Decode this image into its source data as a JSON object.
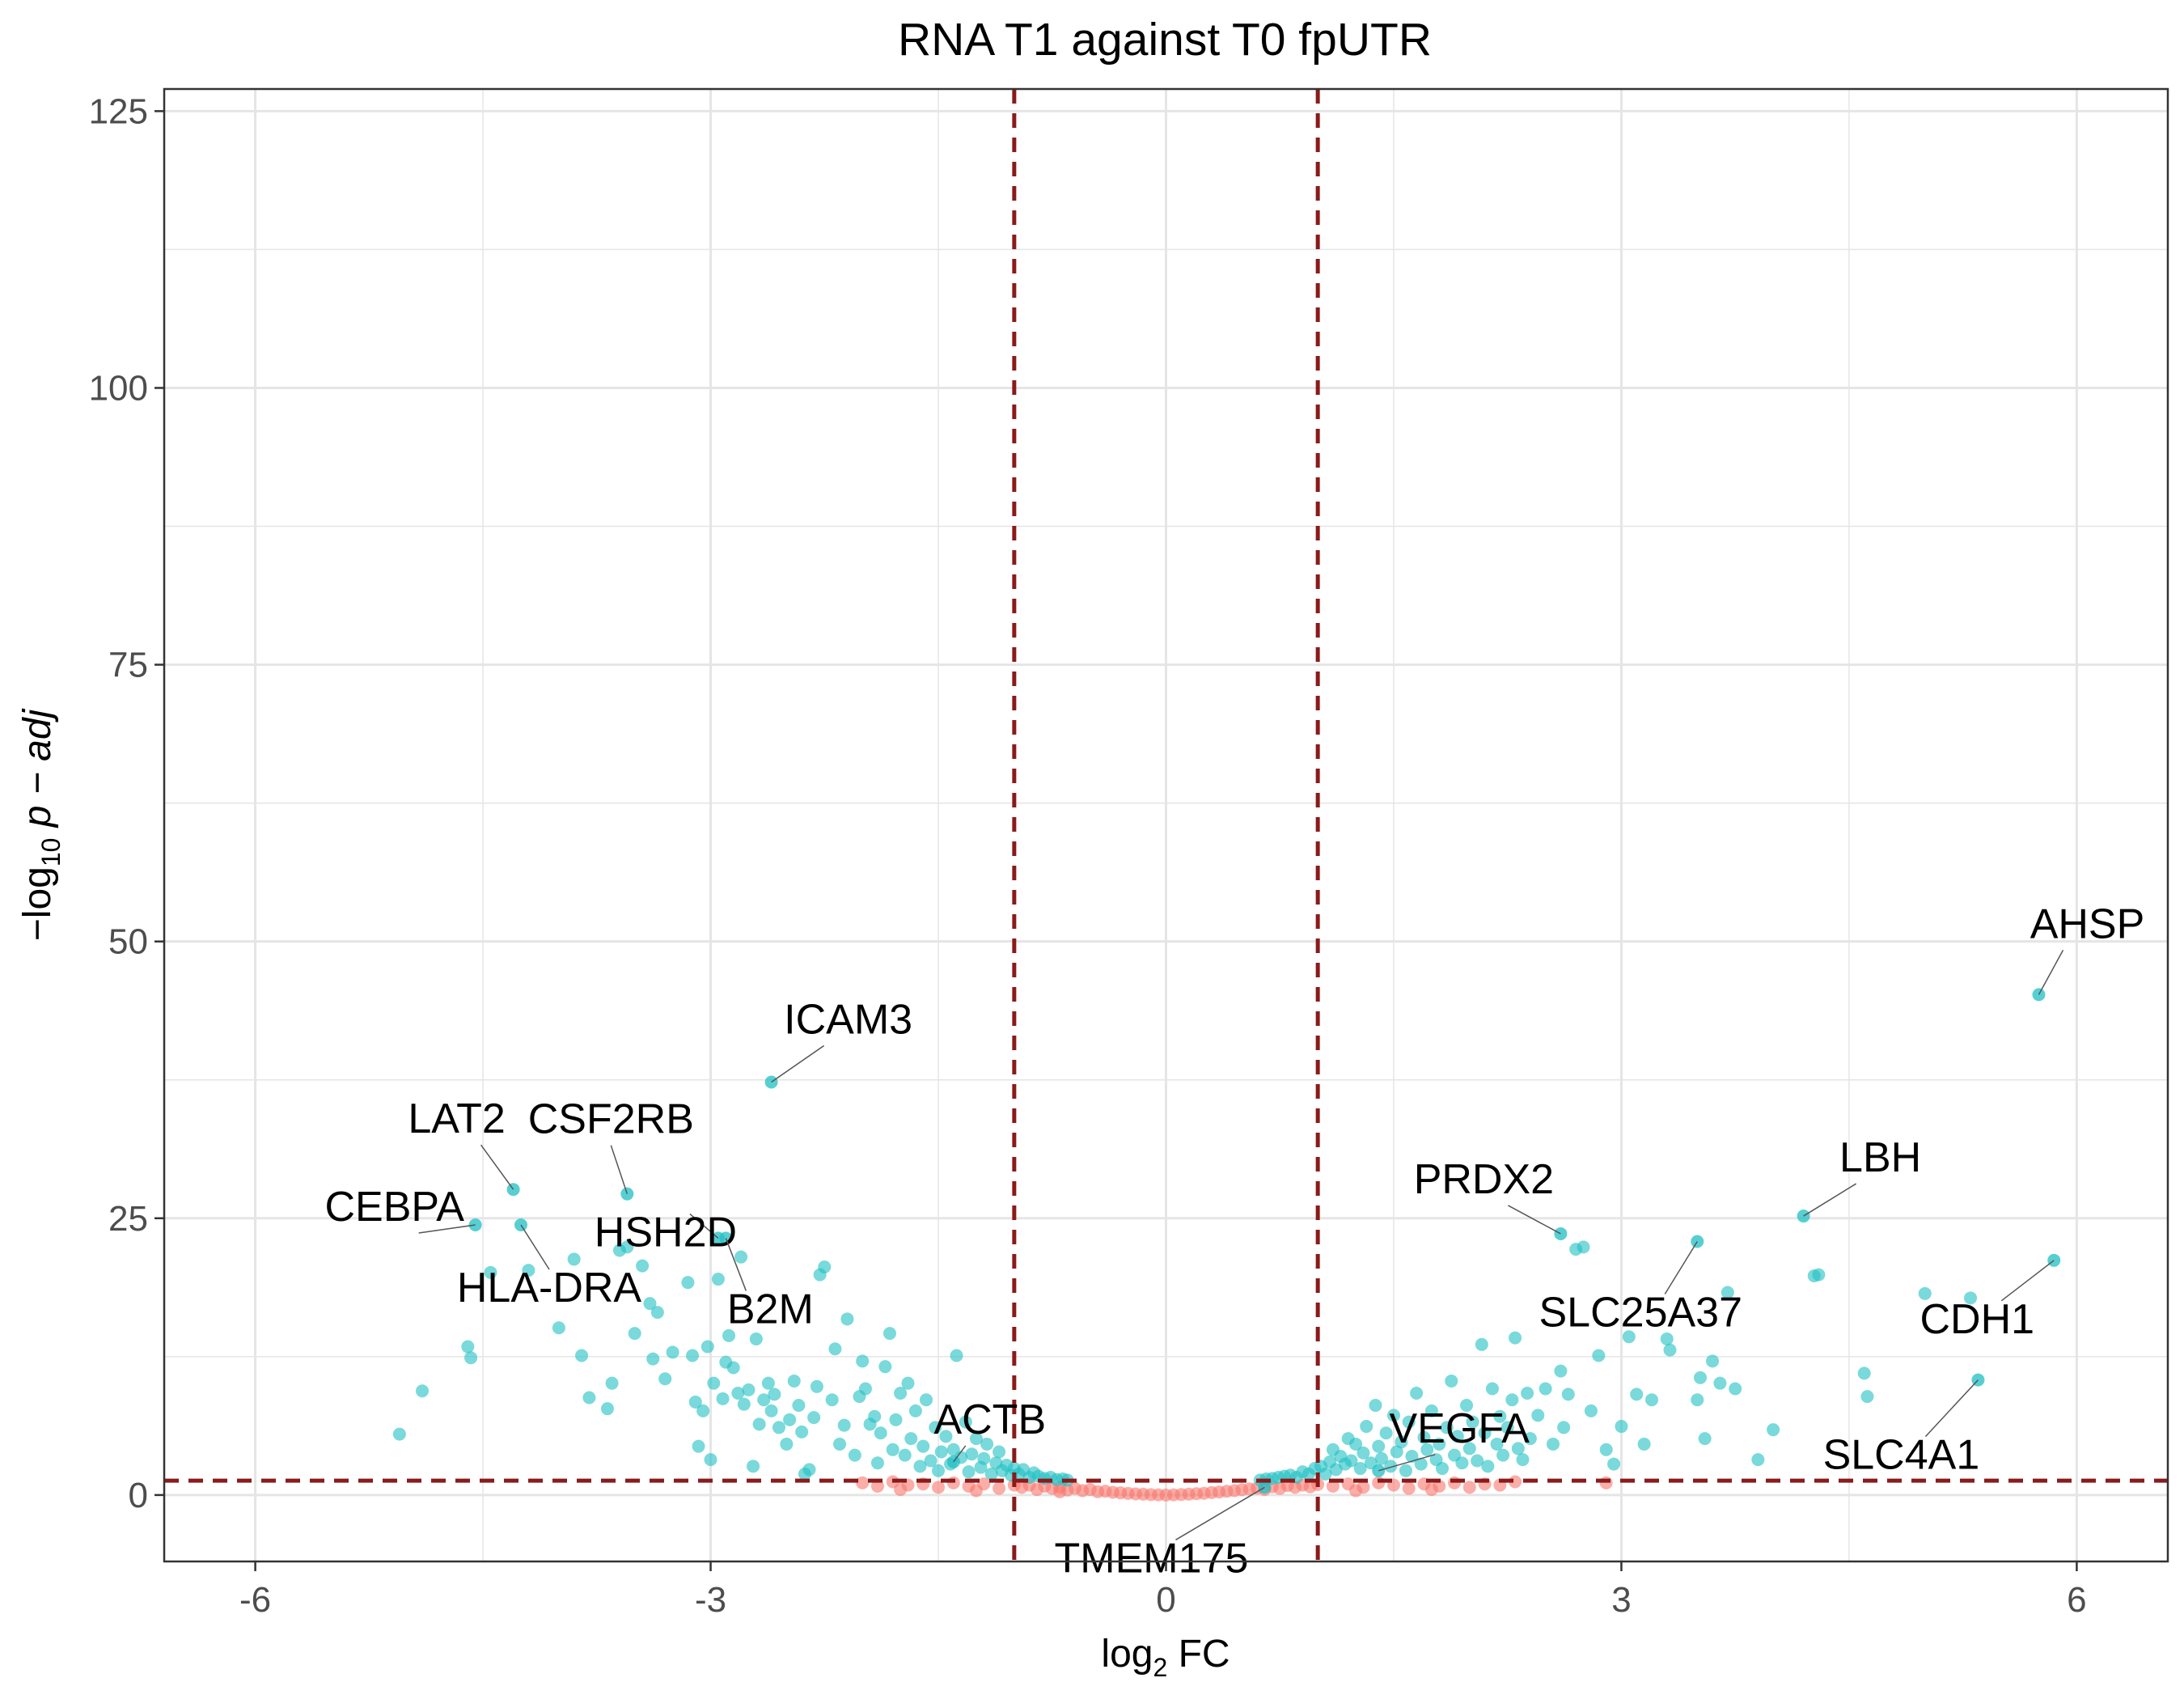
{
  "chart_data": {
    "type": "scatter",
    "title": "RNA T1 against T0 fpUTR",
    "xlabel": {
      "prefix": "log",
      "sub": "2",
      "suffix": " FC"
    },
    "ylabel": {
      "prefix": "−log",
      "sub": "10",
      "suffix": " p − adj"
    },
    "xlim": [
      -6.6,
      6.6
    ],
    "ylim": [
      -6,
      127
    ],
    "xticks": [
      -6,
      -3,
      0,
      3,
      6
    ],
    "xtick_labels": [
      "-6",
      "-3",
      "0",
      "3",
      "6"
    ],
    "yticks": [
      0,
      25,
      50,
      75,
      100,
      125
    ],
    "ytick_labels": [
      "0",
      "25",
      "50",
      "75",
      "100",
      "125"
    ],
    "grid": true,
    "thresholds": {
      "x": [
        -1,
        1
      ],
      "y": 1.3
    },
    "colors": {
      "significant": "#1FBFC3",
      "not_significant": "#F8766D",
      "threshold_line": "#8B1A1A",
      "grid": "#e5e5e5"
    },
    "labeled_points": [
      {
        "gene": "AHSP",
        "x": 5.75,
        "y": 45.2
      },
      {
        "gene": "ICAM3",
        "x": -2.6,
        "y": 37.3
      },
      {
        "gene": "LAT2",
        "x": -4.3,
        "y": 27.6
      },
      {
        "gene": "CSF2RB",
        "x": -3.55,
        "y": 27.2
      },
      {
        "gene": "LBH",
        "x": 4.2,
        "y": 25.2
      },
      {
        "gene": "CEBPA",
        "x": -4.55,
        "y": 24.4
      },
      {
        "gene": "HLA-DRA",
        "x": -4.25,
        "y": 24.4
      },
      {
        "gene": "HSH2D",
        "x": -2.95,
        "y": 23.2
      },
      {
        "gene": "PRDX2",
        "x": 2.6,
        "y": 23.6
      },
      {
        "gene": "SLC25A37",
        "x": 3.5,
        "y": 22.9
      },
      {
        "gene": "CDH1",
        "x": 5.85,
        "y": 21.2
      },
      {
        "gene": "B2M",
        "x": -2.9,
        "y": 23.2
      },
      {
        "gene": "SLC4A1",
        "x": 5.35,
        "y": 10.4
      },
      {
        "gene": "ACTB",
        "x": -1.4,
        "y": 3.0
      },
      {
        "gene": "VEGFA",
        "x": 1.4,
        "y": 2.2
      },
      {
        "gene": "TMEM175",
        "x": 0.65,
        "y": 0.7
      }
    ],
    "significant_points": [
      [
        -5.05,
        5.5
      ],
      [
        -4.9,
        9.4
      ],
      [
        -4.6,
        13.4
      ],
      [
        -4.58,
        12.4
      ],
      [
        -4.45,
        20.1
      ],
      [
        -4.2,
        20.3
      ],
      [
        -4.0,
        15.1
      ],
      [
        -3.9,
        21.3
      ],
      [
        -3.85,
        12.6
      ],
      [
        -3.8,
        8.8
      ],
      [
        -3.68,
        7.8
      ],
      [
        -3.65,
        10.1
      ],
      [
        -3.6,
        22.1
      ],
      [
        -3.55,
        22.4
      ],
      [
        -3.5,
        14.6
      ],
      [
        -3.45,
        20.7
      ],
      [
        -3.4,
        17.3
      ],
      [
        -3.38,
        12.3
      ],
      [
        -3.35,
        16.5
      ],
      [
        -3.3,
        10.5
      ],
      [
        -3.25,
        12.9
      ],
      [
        -3.15,
        19.2
      ],
      [
        -3.12,
        12.6
      ],
      [
        -3.1,
        8.4
      ],
      [
        -3.08,
        4.4
      ],
      [
        -3.05,
        7.6
      ],
      [
        -3.02,
        13.4
      ],
      [
        -3.0,
        3.2
      ],
      [
        -2.98,
        10.1
      ],
      [
        -2.95,
        19.5
      ],
      [
        -2.92,
        8.7
      ],
      [
        -2.9,
        12.0
      ],
      [
        -2.88,
        14.4
      ],
      [
        -2.85,
        11.5
      ],
      [
        -2.82,
        9.2
      ],
      [
        -2.8,
        21.5
      ],
      [
        -2.78,
        8.2
      ],
      [
        -2.75,
        9.5
      ],
      [
        -2.72,
        2.6
      ],
      [
        -2.7,
        14.1
      ],
      [
        -2.68,
        6.4
      ],
      [
        -2.65,
        8.6
      ],
      [
        -2.62,
        10.1
      ],
      [
        -2.6,
        7.6
      ],
      [
        -2.58,
        9.1
      ],
      [
        -2.55,
        6.1
      ],
      [
        -2.5,
        4.6
      ],
      [
        -2.48,
        6.8
      ],
      [
        -2.45,
        10.3
      ],
      [
        -2.42,
        8.1
      ],
      [
        -2.4,
        5.7
      ],
      [
        -2.38,
        1.9
      ],
      [
        -2.35,
        2.3
      ],
      [
        -2.32,
        7.0
      ],
      [
        -2.3,
        9.8
      ],
      [
        -2.28,
        19.9
      ],
      [
        -2.25,
        20.6
      ],
      [
        -2.2,
        8.6
      ],
      [
        -2.18,
        13.2
      ],
      [
        -2.15,
        4.6
      ],
      [
        -2.12,
        6.3
      ],
      [
        -2.1,
        15.9
      ],
      [
        -2.05,
        3.6
      ],
      [
        -2.02,
        8.9
      ],
      [
        -2.0,
        12.1
      ],
      [
        -1.98,
        9.6
      ],
      [
        -1.95,
        6.4
      ],
      [
        -1.92,
        7.1
      ],
      [
        -1.9,
        2.9
      ],
      [
        -1.88,
        5.6
      ],
      [
        -1.85,
        11.6
      ],
      [
        -1.82,
        14.6
      ],
      [
        -1.8,
        4.1
      ],
      [
        -1.78,
        6.8
      ],
      [
        -1.75,
        9.2
      ],
      [
        -1.72,
        3.6
      ],
      [
        -1.7,
        10.1
      ],
      [
        -1.68,
        5.1
      ],
      [
        -1.65,
        7.6
      ],
      [
        -1.62,
        2.6
      ],
      [
        -1.6,
        4.4
      ],
      [
        -1.58,
        8.6
      ],
      [
        -1.55,
        3.1
      ],
      [
        -1.52,
        6.1
      ],
      [
        -1.5,
        2.2
      ],
      [
        -1.48,
        3.9
      ],
      [
        -1.45,
        5.3
      ],
      [
        -1.42,
        2.8
      ],
      [
        -1.4,
        4.1
      ],
      [
        -1.38,
        12.6
      ],
      [
        -1.35,
        3.4
      ],
      [
        -1.32,
        6.6
      ],
      [
        -1.3,
        2.1
      ],
      [
        -1.28,
        3.7
      ],
      [
        -1.25,
        5.1
      ],
      [
        -1.22,
        2.5
      ],
      [
        -1.2,
        3.3
      ],
      [
        -1.18,
        4.6
      ],
      [
        -1.15,
        1.9
      ],
      [
        -1.12,
        2.9
      ],
      [
        -1.1,
        3.9
      ],
      [
        -1.08,
        2.2
      ],
      [
        -1.05,
        2.7
      ],
      [
        -1.02,
        1.8
      ],
      [
        -1.0,
        2.4
      ],
      [
        -0.97,
        1.9
      ],
      [
        -0.94,
        2.3
      ],
      [
        -0.9,
        1.6
      ],
      [
        -0.87,
        2.0
      ],
      [
        -0.84,
        1.7
      ],
      [
        -0.8,
        1.5
      ],
      [
        -0.76,
        1.6
      ],
      [
        -0.72,
        1.4
      ],
      [
        -0.68,
        1.45
      ],
      [
        -0.65,
        1.35
      ],
      [
        0.62,
        1.35
      ],
      [
        0.66,
        1.45
      ],
      [
        0.7,
        1.5
      ],
      [
        0.74,
        1.6
      ],
      [
        0.78,
        1.7
      ],
      [
        0.82,
        1.8
      ],
      [
        0.86,
        1.6
      ],
      [
        0.9,
        2.1
      ],
      [
        0.94,
        1.9
      ],
      [
        0.98,
        2.4
      ],
      [
        1.02,
        2.6
      ],
      [
        1.05,
        1.9
      ],
      [
        1.08,
        3.0
      ],
      [
        1.1,
        4.1
      ],
      [
        1.12,
        2.3
      ],
      [
        1.15,
        3.5
      ],
      [
        1.18,
        2.8
      ],
      [
        1.2,
        5.1
      ],
      [
        1.22,
        3.1
      ],
      [
        1.25,
        4.6
      ],
      [
        1.28,
        2.4
      ],
      [
        1.3,
        3.8
      ],
      [
        1.32,
        6.2
      ],
      [
        1.35,
        2.9
      ],
      [
        1.38,
        8.1
      ],
      [
        1.4,
        4.4
      ],
      [
        1.42,
        3.3
      ],
      [
        1.45,
        5.6
      ],
      [
        1.48,
        2.6
      ],
      [
        1.5,
        7.2
      ],
      [
        1.52,
        3.9
      ],
      [
        1.55,
        4.8
      ],
      [
        1.58,
        2.2
      ],
      [
        1.6,
        6.6
      ],
      [
        1.62,
        3.5
      ],
      [
        1.65,
        9.2
      ],
      [
        1.68,
        2.8
      ],
      [
        1.7,
        5.2
      ],
      [
        1.72,
        4.1
      ],
      [
        1.75,
        7.6
      ],
      [
        1.78,
        3.2
      ],
      [
        1.8,
        4.6
      ],
      [
        1.82,
        2.4
      ],
      [
        1.85,
        6.1
      ],
      [
        1.88,
        10.3
      ],
      [
        1.9,
        3.6
      ],
      [
        1.92,
        5.3
      ],
      [
        1.95,
        2.9
      ],
      [
        1.98,
        8.1
      ],
      [
        2.0,
        4.2
      ],
      [
        2.02,
        6.6
      ],
      [
        2.05,
        3.1
      ],
      [
        2.08,
        13.6
      ],
      [
        2.1,
        5.6
      ],
      [
        2.12,
        2.6
      ],
      [
        2.15,
        9.6
      ],
      [
        2.18,
        4.6
      ],
      [
        2.2,
        7.1
      ],
      [
        2.22,
        3.6
      ],
      [
        2.25,
        6.1
      ],
      [
        2.28,
        8.6
      ],
      [
        2.3,
        14.2
      ],
      [
        2.32,
        4.2
      ],
      [
        2.35,
        3.2
      ],
      [
        2.38,
        9.2
      ],
      [
        2.4,
        5.1
      ],
      [
        2.45,
        7.2
      ],
      [
        2.5,
        9.6
      ],
      [
        2.55,
        4.6
      ],
      [
        2.6,
        11.2
      ],
      [
        2.62,
        6.1
      ],
      [
        2.65,
        9.1
      ],
      [
        2.7,
        22.2
      ],
      [
        2.75,
        22.4
      ],
      [
        2.8,
        7.6
      ],
      [
        2.85,
        12.6
      ],
      [
        2.9,
        4.1
      ],
      [
        2.95,
        2.8
      ],
      [
        3.0,
        6.2
      ],
      [
        3.05,
        14.3
      ],
      [
        3.1,
        9.1
      ],
      [
        3.15,
        4.6
      ],
      [
        3.2,
        8.6
      ],
      [
        3.3,
        14.1
      ],
      [
        3.32,
        13.1
      ],
      [
        3.5,
        8.6
      ],
      [
        3.52,
        10.6
      ],
      [
        3.55,
        5.1
      ],
      [
        3.6,
        12.1
      ],
      [
        3.65,
        10.1
      ],
      [
        3.7,
        18.3
      ],
      [
        3.75,
        9.6
      ],
      [
        3.9,
        3.2
      ],
      [
        4.0,
        5.9
      ],
      [
        4.3,
        19.9
      ],
      [
        4.27,
        19.8
      ],
      [
        4.6,
        11.0
      ],
      [
        4.62,
        8.9
      ],
      [
        5.0,
        18.2
      ],
      [
        5.3,
        17.8
      ]
    ],
    "nonsignificant_points": [
      [
        -2.0,
        1.1
      ],
      [
        -1.9,
        0.8
      ],
      [
        -1.8,
        1.2
      ],
      [
        -1.7,
        0.9
      ],
      [
        -1.6,
        1.0
      ],
      [
        -1.5,
        0.7
      ],
      [
        -1.4,
        1.1
      ],
      [
        -1.3,
        0.8
      ],
      [
        -1.2,
        1.0
      ],
      [
        -1.1,
        0.6
      ],
      [
        -1.0,
        0.9
      ],
      [
        -0.95,
        0.7
      ],
      [
        -0.9,
        0.9
      ],
      [
        -0.85,
        0.5
      ],
      [
        -0.8,
        0.8
      ],
      [
        -0.75,
        0.6
      ],
      [
        -0.7,
        0.7
      ],
      [
        -0.65,
        0.45
      ],
      [
        -0.6,
        0.6
      ],
      [
        -0.55,
        0.4
      ],
      [
        -0.5,
        0.5
      ],
      [
        -0.45,
        0.3
      ],
      [
        -0.4,
        0.35
      ],
      [
        -0.35,
        0.25
      ],
      [
        -0.3,
        0.2
      ],
      [
        -0.25,
        0.15
      ],
      [
        -0.2,
        0.1
      ],
      [
        -0.15,
        0.08
      ],
      [
        -0.1,
        0.04
      ],
      [
        -0.05,
        0.02
      ],
      [
        0.0,
        0.0
      ],
      [
        0.05,
        0.02
      ],
      [
        0.1,
        0.05
      ],
      [
        0.15,
        0.08
      ],
      [
        0.2,
        0.12
      ],
      [
        0.25,
        0.16
      ],
      [
        0.3,
        0.22
      ],
      [
        0.35,
        0.28
      ],
      [
        0.4,
        0.34
      ],
      [
        0.45,
        0.4
      ],
      [
        0.5,
        0.48
      ],
      [
        0.55,
        0.55
      ],
      [
        0.6,
        0.62
      ],
      [
        0.65,
        0.5
      ],
      [
        0.7,
        0.75
      ],
      [
        0.75,
        0.6
      ],
      [
        0.8,
        0.85
      ],
      [
        0.85,
        0.7
      ],
      [
        0.9,
        0.9
      ],
      [
        0.95,
        0.75
      ],
      [
        1.0,
        0.95
      ],
      [
        1.1,
        0.8
      ],
      [
        1.2,
        1.0
      ],
      [
        1.3,
        0.7
      ],
      [
        1.4,
        1.1
      ],
      [
        1.5,
        0.9
      ],
      [
        1.6,
        0.6
      ],
      [
        1.7,
        1.0
      ],
      [
        1.8,
        0.8
      ],
      [
        1.9,
        1.1
      ],
      [
        2.0,
        0.7
      ],
      [
        2.1,
        1.0
      ],
      [
        2.2,
        0.9
      ],
      [
        2.3,
        1.2
      ],
      [
        2.9,
        1.1
      ],
      [
        -1.75,
        0.5
      ],
      [
        1.75,
        0.5
      ],
      [
        -1.25,
        0.4
      ],
      [
        1.25,
        0.4
      ],
      [
        -0.7,
        0.3
      ]
    ]
  }
}
